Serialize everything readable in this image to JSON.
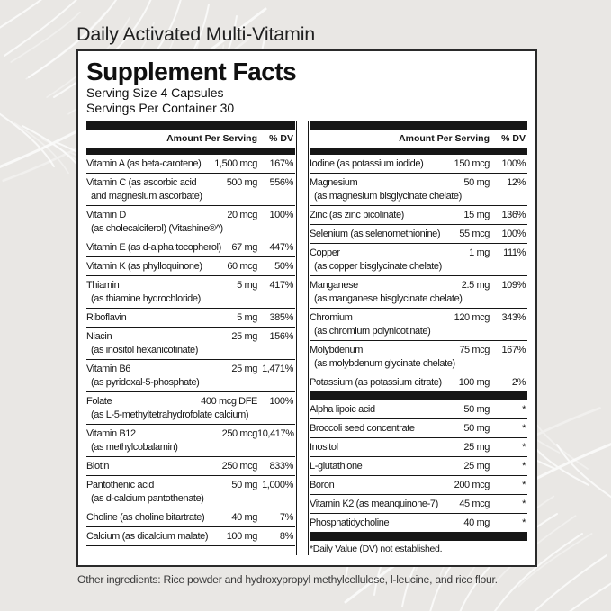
{
  "page": {
    "product_title": "Daily Activated Multi-Vitamin",
    "other_ingredients": "Other ingredients: Rice powder and hydroxypropyl methylcellulose, l-leucine, and rice flour."
  },
  "supplement_facts": {
    "title": "Supplement Facts",
    "serving_size": "Serving Size 4 Capsules",
    "servings_per_container": "Servings Per Container 30",
    "column_headers": {
      "amount": "Amount Per Serving",
      "dv": "% DV"
    },
    "left_column_rows": [
      {
        "name": "Vitamin A (as beta-carotene)",
        "amount": "1,500 mcg",
        "dv": "167%"
      },
      {
        "name": "Vitamin C (as ascorbic acid",
        "name2": "and magnesium ascorbate)",
        "amount": "500 mg",
        "dv": "556%"
      },
      {
        "name": "Vitamin D",
        "name2": "(as cholecalciferol) (Vitashine®^)",
        "amount": "20 mcg",
        "dv": "100%"
      },
      {
        "name": "Vitamin E (as d-alpha tocopherol)",
        "amount": "67 mg",
        "dv": "447%"
      },
      {
        "name": "Vitamin K (as phylloquinone)",
        "amount": "60 mcg",
        "dv": "50%"
      },
      {
        "name": "Thiamin",
        "name2": "(as thiamine hydrochloride)",
        "amount": "5 mg",
        "dv": "417%"
      },
      {
        "name": "Riboflavin",
        "amount": "5 mg",
        "dv": "385%"
      },
      {
        "name": "Niacin",
        "name2": "(as inositol hexanicotinate)",
        "amount": "25 mg",
        "dv": "156%"
      },
      {
        "name": "Vitamin B6",
        "name2": "(as pyridoxal-5-phosphate)",
        "amount": "25 mg",
        "dv": "1,471%"
      },
      {
        "name": "Folate",
        "name2": "(as L-5-methyltetrahydrofolate calcium)",
        "amount": "400 mcg DFE",
        "dv": "100%"
      },
      {
        "name": "Vitamin B12",
        "name2": "(as methylcobalamin)",
        "amount": "250 mcg",
        "dv": "10,417%"
      },
      {
        "name": "Biotin",
        "amount": "250 mcg",
        "dv": "833%"
      },
      {
        "name": "Pantothenic acid",
        "name2": "(as d-calcium pantothenate)",
        "amount": "50 mg",
        "dv": "1,000%"
      },
      {
        "name": "Choline (as choline bitartrate)",
        "amount": "40 mg",
        "dv": "7%"
      },
      {
        "name": "Calcium (as dicalcium malate)",
        "amount": "100 mg",
        "dv": "8%"
      }
    ],
    "right_column_minerals": [
      {
        "name": "Iodine (as potassium iodide)",
        "amount": "150 mcg",
        "dv": "100%"
      },
      {
        "name": "Magnesium",
        "name2": "(as magnesium bisglycinate chelate)",
        "amount": "50 mg",
        "dv": "12%"
      },
      {
        "name": "Zinc (as zinc picolinate)",
        "amount": "15 mg",
        "dv": "136%"
      },
      {
        "name": "Selenium (as selenomethionine)",
        "amount": "55 mcg",
        "dv": "100%"
      },
      {
        "name": "Copper",
        "name2": "(as copper bisglycinate chelate)",
        "amount": "1 mg",
        "dv": "111%"
      },
      {
        "name": "Manganese",
        "name2": "(as manganese bisglycinate chelate)",
        "amount": "2.5 mg",
        "dv": "109%"
      },
      {
        "name": "Chromium",
        "name2": "(as chromium polynicotinate)",
        "amount": "120 mcg",
        "dv": "343%"
      },
      {
        "name": "Molybdenum",
        "name2": "(as molybdenum glycinate chelate)",
        "amount": "75 mcg",
        "dv": "167%"
      },
      {
        "name": "Potassium (as potassium citrate)",
        "amount": "100 mg",
        "dv": "2%"
      }
    ],
    "right_column_other": [
      {
        "name": "Alpha lipoic acid",
        "amount": "50 mg",
        "dv": "*"
      },
      {
        "name": "Broccoli seed concentrate",
        "amount": "50 mg",
        "dv": "*"
      },
      {
        "name": "Inositol",
        "amount": "25 mg",
        "dv": "*"
      },
      {
        "name": "L-glutathione",
        "amount": "25 mg",
        "dv": "*"
      },
      {
        "name": "Boron",
        "amount": "200 mcg",
        "dv": "*"
      },
      {
        "name": "Vitamin K2 (as meanquinone-7)",
        "amount": "45 mcg",
        "dv": "*"
      },
      {
        "name": "Phosphatidycholine",
        "amount": "40 mg",
        "dv": "*"
      }
    ],
    "footnote": "*Daily Value (DV) not established."
  },
  "colors": {
    "background": "#e9e7e4",
    "panel_background": "#ffffff",
    "ink": "#161616",
    "foliage_decoration": "#ffffff"
  }
}
